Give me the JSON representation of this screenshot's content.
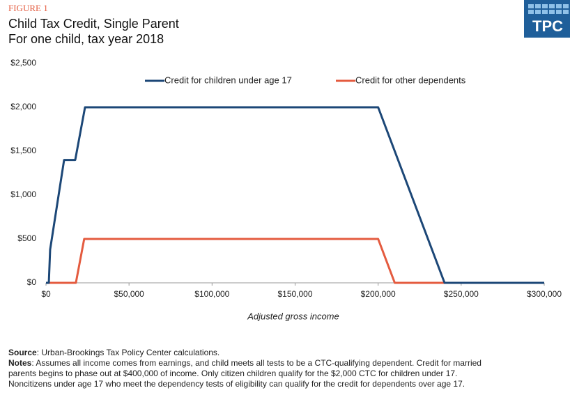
{
  "header": {
    "figure": "FIGURE 1",
    "title": "Child Tax Credit, Single Parent",
    "subtitle": "For one child, tax year 2018",
    "logo": "TPC"
  },
  "chart_data": {
    "type": "line",
    "x_label": "Adjusted gross income",
    "xlim": [
      0,
      300000
    ],
    "ylim": [
      0,
      2500
    ],
    "xticks": [
      {
        "value": 0,
        "label": "$0"
      },
      {
        "value": 50000,
        "label": "$50,000"
      },
      {
        "value": 100000,
        "label": "$100,000"
      },
      {
        "value": 150000,
        "label": "$150,000"
      },
      {
        "value": 200000,
        "label": "$200,000"
      },
      {
        "value": 250000,
        "label": "$250,000"
      },
      {
        "value": 300000,
        "label": "$300,000"
      }
    ],
    "yticks": [
      {
        "value": 0,
        "label": "$0"
      },
      {
        "value": 500,
        "label": "$500"
      },
      {
        "value": 1000,
        "label": "$1,000"
      },
      {
        "value": 1500,
        "label": "$1,500"
      },
      {
        "value": 2000,
        "label": "$2,000"
      },
      {
        "value": 2500,
        "label": "$2,500"
      }
    ],
    "legend": "top",
    "grid": false,
    "series": [
      {
        "name": "Credit for other dependents",
        "color": "#e45b3f",
        "x": [
          0,
          18000,
          23000,
          200000,
          210000,
          300000
        ],
        "values": [
          0,
          0,
          500,
          500,
          0,
          0
        ]
      },
      {
        "name": "Credit for children under age 17",
        "color": "#1c4777",
        "x": [
          0,
          1700,
          2500,
          10900,
          17600,
          23500,
          200000,
          240000,
          300000
        ],
        "values": [
          0,
          0,
          380,
          1400,
          1400,
          2000,
          2000,
          0,
          0
        ]
      }
    ]
  },
  "footer": {
    "source_label": "Source",
    "source": ": Urban-Brookings Tax Policy Center calculations.",
    "notes_label": "Notes",
    "notes": [
      ": Assumes all income comes from earnings, and child meets all tests to be a CTC-qualifying  dependent. Credit for married",
      "parents begins to phase out at $400,000 of income. Only citizen children qualify for the $2,000 CTC for children under 17.",
      "Noncitizens under age 17 who meet the dependency tests of eligibility can qualify for the credit for dependents over age 17."
    ]
  }
}
